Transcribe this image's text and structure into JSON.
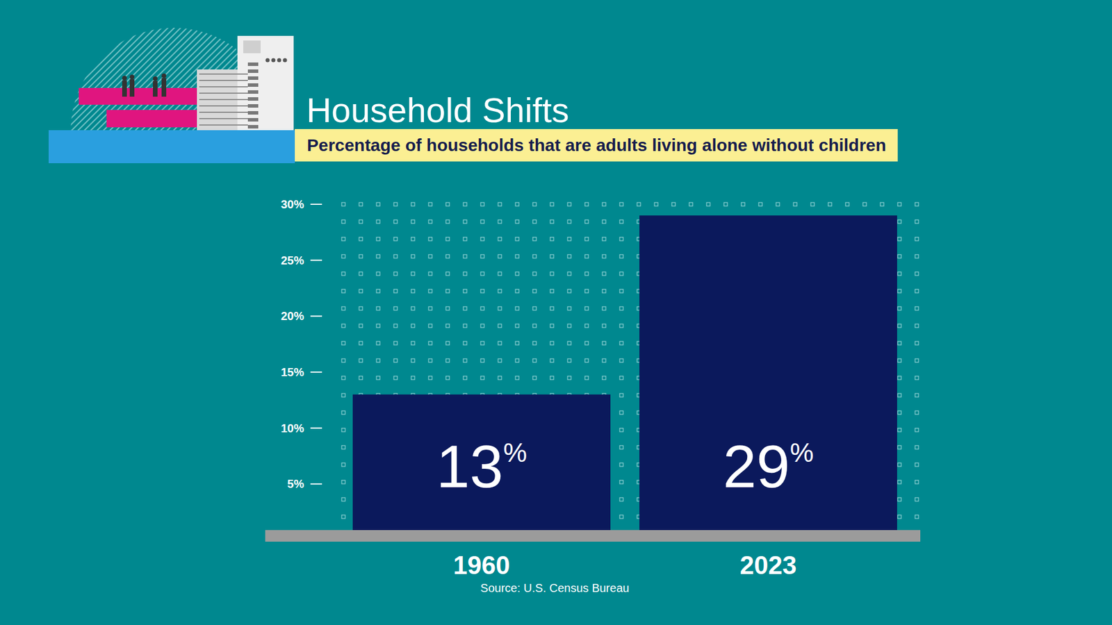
{
  "chart_data": {
    "type": "bar",
    "title": "Household Shifts",
    "subtitle": "Percentage of households that are adults living alone without children",
    "categories": [
      "1960",
      "2023"
    ],
    "values": [
      13,
      29
    ],
    "value_labels": [
      "13%",
      "29%"
    ],
    "color": "#0b195c",
    "ylim": [
      0,
      30
    ],
    "yticks": [
      {
        "value": 5,
        "label": "5%"
      },
      {
        "value": 10,
        "label": "10%"
      },
      {
        "value": 15,
        "label": "15%"
      },
      {
        "value": 20,
        "label": "20%"
      },
      {
        "value": 25,
        "label": "25%"
      },
      {
        "value": 30,
        "label": "30%"
      }
    ],
    "grid": true,
    "data_labels": true,
    "source": "Source: U.S. Census Bureau"
  }
}
